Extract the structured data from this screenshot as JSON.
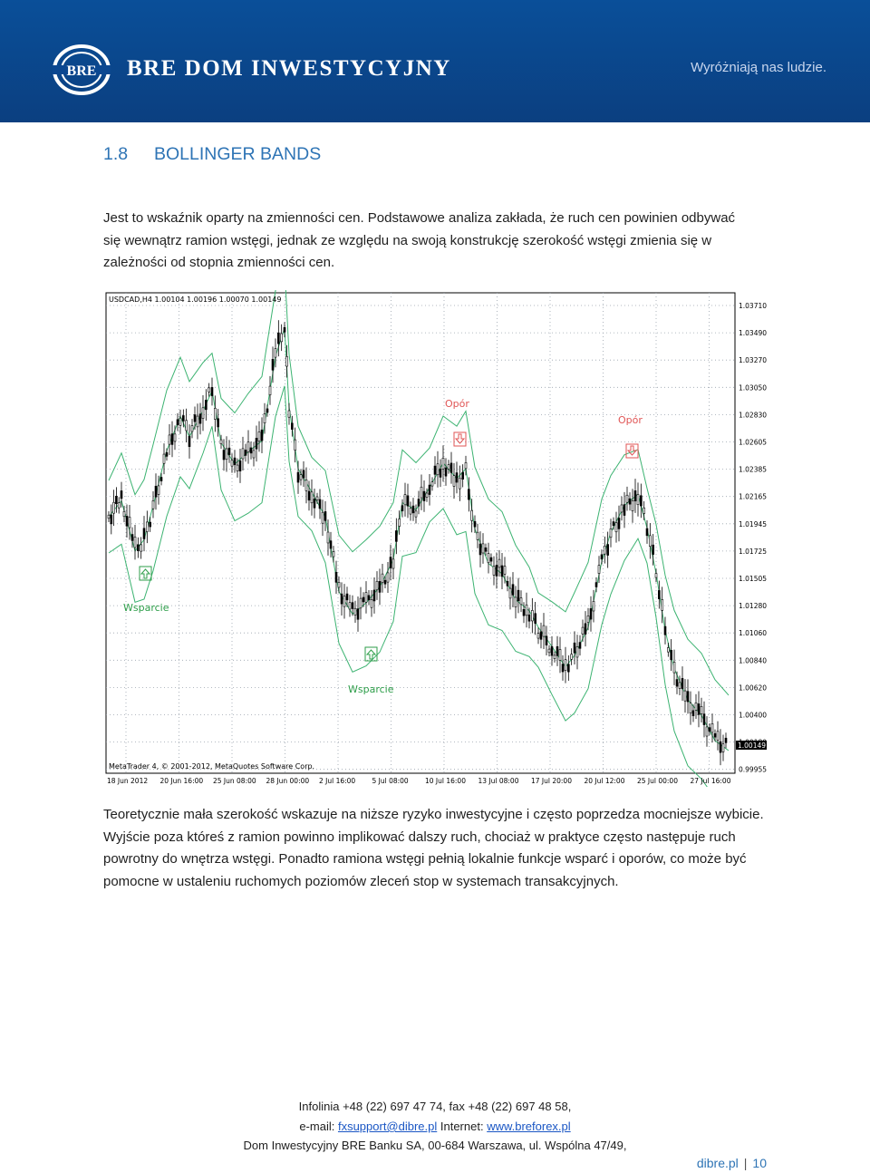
{
  "header": {
    "brand": "BRE DOM INWESTYCYJNY",
    "slogan": "Wyróżniają nas ludzie."
  },
  "section": {
    "number": "1.8",
    "title": "BOLLINGER BANDS"
  },
  "intro_text": "Jest to wskaźnik oparty na zmienności cen. Podstawowe analiza zakłada, że ruch cen powinien odbywać się wewnątrz ramion wstęgi, jednak ze względu na swoją konstrukcję szerokość wstęgi zmienia się w zależności od stopnia zmienności cen.",
  "chart": {
    "symbol_line": "USDCAD,H4  1.00104 1.00196 1.00070 1.00149",
    "copyright": "MetaTrader 4, © 2001-2012, MetaQuotes Software Corp.",
    "current_price": "1.00149",
    "y_ticks": [
      "1.03710",
      "1.03490",
      "1.03270",
      "1.03050",
      "1.02830",
      "1.02605",
      "1.02385",
      "1.02165",
      "1.01945",
      "1.01725",
      "1.01505",
      "1.01280",
      "1.01060",
      "1.00840",
      "1.00620",
      "1.00400",
      "1.00180",
      "0.99955"
    ],
    "x_ticks": [
      "18 Jun 2012",
      "20 Jun 16:00",
      "25 Jun 08:00",
      "28 Jun 00:00",
      "2 Jul 16:00",
      "5 Jul 08:00",
      "10 Jul 16:00",
      "13 Jul 08:00",
      "17 Jul 20:00",
      "20 Jul 12:00",
      "25 Jul 00:00",
      "27 Jul 16:00"
    ],
    "annotations": {
      "support1": "Wsparcie",
      "support2": "Wsparcie",
      "resistance1": "Opór",
      "resistance2": "Opór"
    },
    "colors": {
      "candle": "#000000",
      "band": "#3cb371",
      "signal": "#e05555",
      "support_arrow": "#2e9e4a"
    }
  },
  "body_text": "Teoretycznie mała szerokość wskazuje na niższe ryzyko inwestycyjne i często poprzedza mocniejsze wybicie. Wyjście poza któreś z ramion powinno implikować dalszy ruch, chociaż w praktyce często następuje ruch powrotny do wnętrza wstęgi. Ponadto ramiona wstęgi pełnią lokalnie funkcje wsparć i oporów, co może być pomocne w ustaleniu ruchomych poziomów zleceń stop w systemach transakcyjnych.",
  "footer": {
    "line1": "Infolinia +48 (22) 697 47 74, fax +48 (22) 697 48 58,",
    "email_label": "e-mail: ",
    "email": "fxsupport@dibre.pl",
    "internet_label": " Internet: ",
    "website": "www.breforex.pl",
    "line3": "Dom Inwestycyjny BRE Banku SA, 00-684 Warszawa, ul. Wspólna 47/49,",
    "page_site": "dibre.pl",
    "page_number": "10"
  }
}
